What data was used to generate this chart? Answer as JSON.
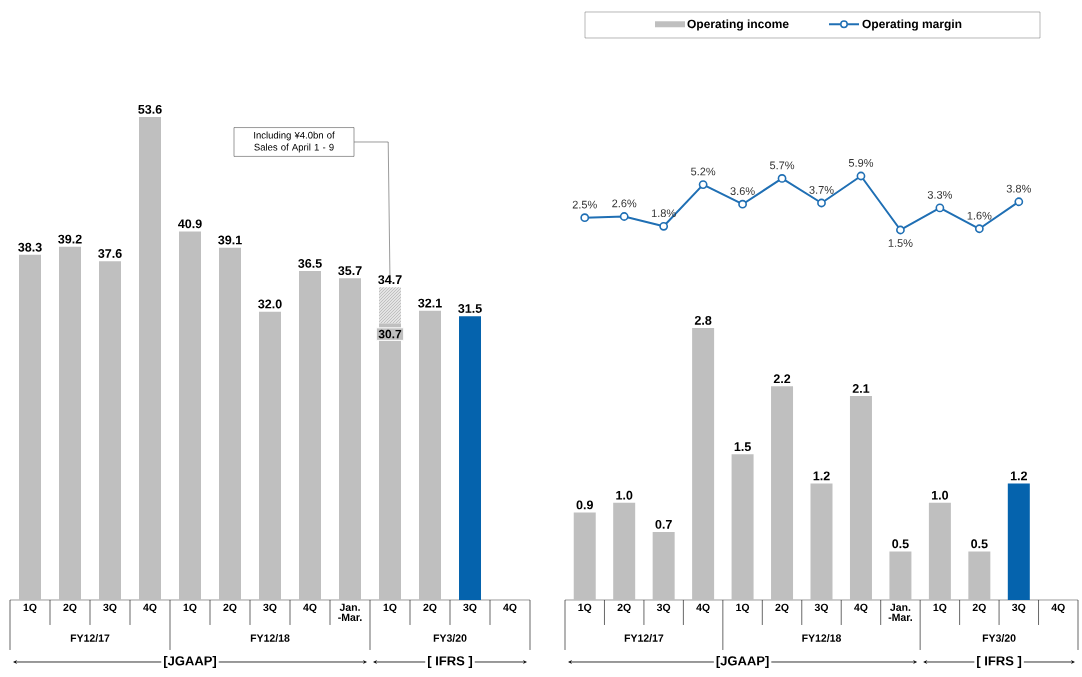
{
  "chart_data": [
    {
      "type": "bar",
      "stacked": true,
      "tick_labels": "x",
      "categories": [
        "1Q",
        "2Q",
        "3Q",
        "4Q",
        "1Q",
        "2Q",
        "3Q",
        "4Q",
        "Jan. -Mar.",
        "1Q",
        "2Q",
        "3Q",
        "4Q"
      ],
      "totals": [
        null,
        null,
        null,
        null,
        null,
        null,
        null,
        null,
        null,
        "34.7",
        null,
        null,
        null
      ],
      "series": [
        {
          "values": [
            38.3,
            39.2,
            37.6,
            53.6,
            40.9,
            39.1,
            32.0,
            36.5,
            35.7,
            30.7,
            32.1,
            31.5,
            null
          ],
          "colors": [
            "#bfbfbf",
            "#bfbfbf",
            "#bfbfbf",
            "#bfbfbf",
            "#bfbfbf",
            "#bfbfbf",
            "#bfbfbf",
            "#bfbfbf",
            "#bfbfbf",
            "#bfbfbf",
            "#bfbfbf",
            "#0563ad",
            "#bfbfbf"
          ],
          "value_labels": [
            "38.3",
            "39.2",
            "37.6",
            "53.6",
            "40.9",
            "39.1",
            "32.0",
            "36.5",
            "35.7",
            "30.7",
            "32.1",
            "31.5",
            null
          ]
        },
        {
          "values": [
            null,
            null,
            null,
            null,
            null,
            null,
            null,
            null,
            null,
            4.0,
            null,
            null,
            null
          ],
          "color": "#e4e4e4"
        }
      ],
      "annotations": [
        "Including ¥4.0bn of Sales of April 1 - 9",
        "FY12/17",
        "FY12/18",
        "FY3/20",
        "[JGAAP]",
        "[ IFRS ]"
      ]
    },
    {
      "type": "line",
      "tick_labels": "x",
      "legend": "top",
      "marker": "circle",
      "line_style": "solid",
      "categories": [
        null,
        null,
        null,
        null,
        null,
        null,
        null,
        null,
        null,
        null,
        null,
        null,
        null
      ],
      "series": [
        {
          "name": "Operating margin",
          "color": "#1f6fb4",
          "values": [
            2.5,
            2.6,
            1.8,
            5.2,
            3.6,
            5.7,
            3.7,
            5.9,
            1.5,
            3.3,
            1.6,
            3.8,
            null
          ],
          "value_labels": [
            "2.5%",
            "2.6%",
            "1.8%",
            "5.2%",
            "3.6%",
            "5.7%",
            "3.7%",
            "5.9%",
            "1.5%",
            "3.3%",
            "1.6%",
            "3.8%",
            null
          ]
        }
      ]
    },
    {
      "type": "bar",
      "tick_labels": "x",
      "legend": "top",
      "categories": [
        "1Q",
        "2Q",
        "3Q",
        "4Q",
        "1Q",
        "2Q",
        "3Q",
        "4Q",
        "Jan. -Mar.",
        "1Q",
        "2Q",
        "3Q",
        "4Q"
      ],
      "series": [
        {
          "name": "Operating income",
          "values": [
            0.9,
            1.0,
            0.7,
            2.8,
            1.5,
            2.2,
            1.2,
            2.1,
            0.5,
            1.0,
            0.5,
            1.2,
            null
          ],
          "colors": [
            "#bfbfbf",
            "#bfbfbf",
            "#bfbfbf",
            "#bfbfbf",
            "#bfbfbf",
            "#bfbfbf",
            "#bfbfbf",
            "#bfbfbf",
            "#bfbfbf",
            "#bfbfbf",
            "#bfbfbf",
            "#0563ad",
            "#bfbfbf"
          ],
          "value_labels": [
            "0.9",
            "1.0",
            "0.7",
            "2.8",
            "1.5",
            "2.2",
            "1.2",
            "2.1",
            "0.5",
            "1.0",
            "0.5",
            "1.2",
            null
          ]
        }
      ],
      "annotations": [
        "FY12/17",
        "FY12/18",
        "FY3/20",
        "[JGAAP]",
        "[ IFRS ]"
      ]
    }
  ]
}
